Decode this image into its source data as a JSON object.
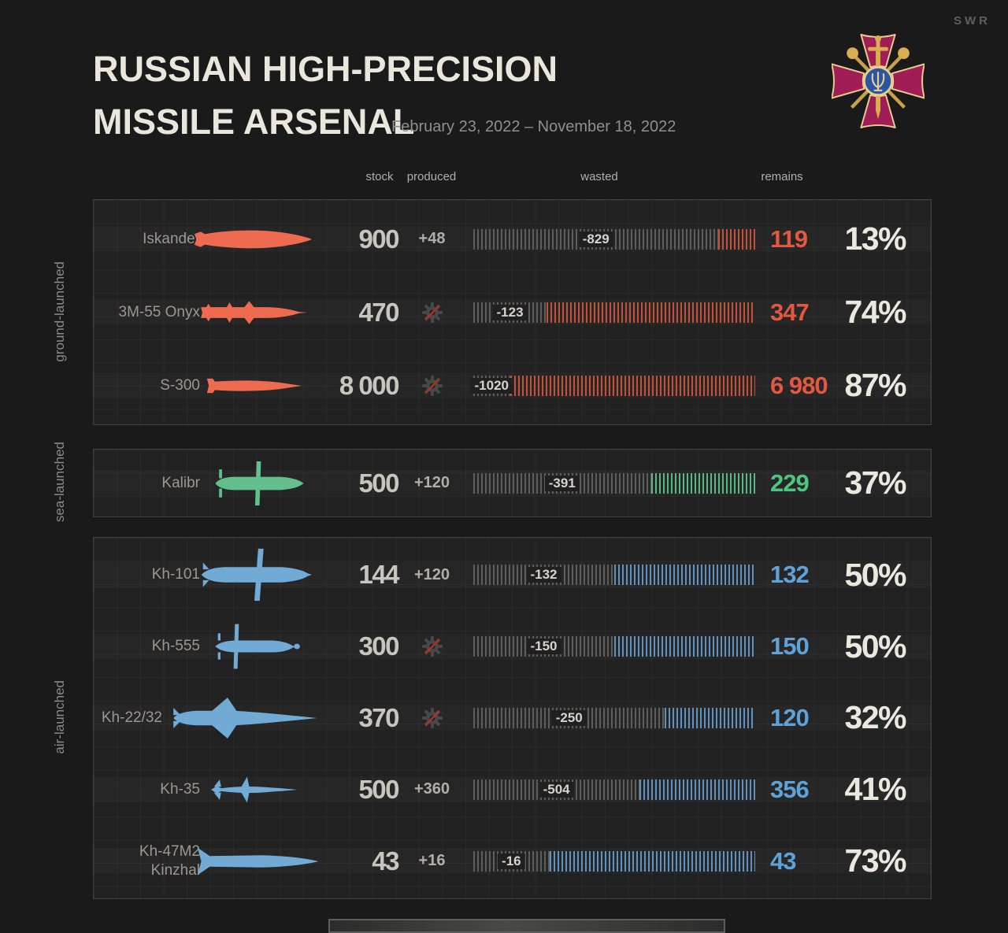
{
  "brand": "SWR",
  "header": {
    "title_line1": "RUSSIAN HIGH-PRECISION",
    "title_line2": "MISSILE ARSENAL",
    "date_range": "February 23, 2022 – November 18, 2022",
    "emblem_icon": "ukraine-armed-forces-emblem"
  },
  "columns": {
    "stock": "stock",
    "produced": "produced",
    "wasted": "wasted",
    "remains": "remains"
  },
  "sections": [
    {
      "label": "ground-launched",
      "colors": {
        "missile": "#ee6a50",
        "hatch": "#c4503a",
        "remains": "#e25840"
      },
      "rows": [
        {
          "name": "Iskander",
          "icon": "iskander",
          "stock": "900",
          "produced": "+48",
          "wasted": "-829",
          "remains": "119",
          "percent": "13%",
          "percent_value": 13
        },
        {
          "name": "3M-55 Onyx",
          "icon": "onyx",
          "stock": "470",
          "produced": null,
          "wasted": "-123",
          "remains": "347",
          "percent": "74%",
          "percent_value": 74
        },
        {
          "name": "S-300",
          "icon": "s300",
          "stock": "8 000",
          "produced": null,
          "wasted": "-1020",
          "remains": "6 980",
          "percent": "87%",
          "percent_value": 87
        }
      ]
    },
    {
      "label": "sea-launched",
      "colors": {
        "missile": "#63c08d",
        "hatch": "#57b97f",
        "remains": "#4ec47e"
      },
      "rows": [
        {
          "name": "Kalibr",
          "icon": "kalibr",
          "stock": "500",
          "produced": "+120",
          "wasted": "-391",
          "remains": "229",
          "percent": "37%",
          "percent_value": 37
        }
      ]
    },
    {
      "label": "air-launched",
      "colors": {
        "missile": "#72aad6",
        "hatch": "#6092bf",
        "remains": "#5ea2d8"
      },
      "rows": [
        {
          "name": "Kh-101",
          "icon": "kh101",
          "stock": "144",
          "produced": "+120",
          "wasted": "-132",
          "remains": "132",
          "percent": "50%",
          "percent_value": 50
        },
        {
          "name": "Kh-555",
          "icon": "kh555",
          "stock": "300",
          "produced": null,
          "wasted": "-150",
          "remains": "150",
          "percent": "50%",
          "percent_value": 50
        },
        {
          "name": "Kh-22/32",
          "icon": "kh2232",
          "stock": "370",
          "produced": null,
          "wasted": "-250",
          "remains": "120",
          "percent": "32%",
          "percent_value": 32
        },
        {
          "name": "Kh-35",
          "icon": "kh35",
          "stock": "500",
          "produced": "+360",
          "wasted": "-504",
          "remains": "356",
          "percent": "41%",
          "percent_value": 41
        },
        {
          "name": "Kh-47M2\nKinzhal",
          "icon": "kinzhal",
          "stock": "43",
          "produced": "+16",
          "wasted": "-16",
          "remains": "43",
          "percent": "73%",
          "percent_value": 73
        }
      ]
    }
  ],
  "chart_data": {
    "type": "table",
    "title": "RUSSIAN HIGH-PRECISION MISSILE ARSENAL",
    "subtitle": "February 23, 2022 – November 18, 2022",
    "columns": [
      "missile",
      "group",
      "stock",
      "produced",
      "wasted",
      "remains",
      "remains_pct"
    ],
    "rows": [
      [
        "Iskander",
        "ground-launched",
        900,
        48,
        -829,
        119,
        13
      ],
      [
        "3M-55 Onyx",
        "ground-launched",
        470,
        null,
        -123,
        347,
        74
      ],
      [
        "S-300",
        "ground-launched",
        8000,
        null,
        -1020,
        6980,
        87
      ],
      [
        "Kalibr",
        "sea-launched",
        500,
        120,
        -391,
        229,
        37
      ],
      [
        "Kh-101",
        "air-launched",
        144,
        120,
        -132,
        132,
        50
      ],
      [
        "Kh-555",
        "air-launched",
        300,
        null,
        -150,
        150,
        50
      ],
      [
        "Kh-22/32",
        "air-launched",
        370,
        null,
        -250,
        120,
        32
      ],
      [
        "Kh-35",
        "air-launched",
        500,
        360,
        -504,
        356,
        41
      ],
      [
        "Kh-47M2 Kinzhal",
        "air-launched",
        43,
        16,
        -16,
        43,
        73
      ]
    ],
    "legend": "no-production-icon (crossed-out gear) shown where produced is null"
  }
}
